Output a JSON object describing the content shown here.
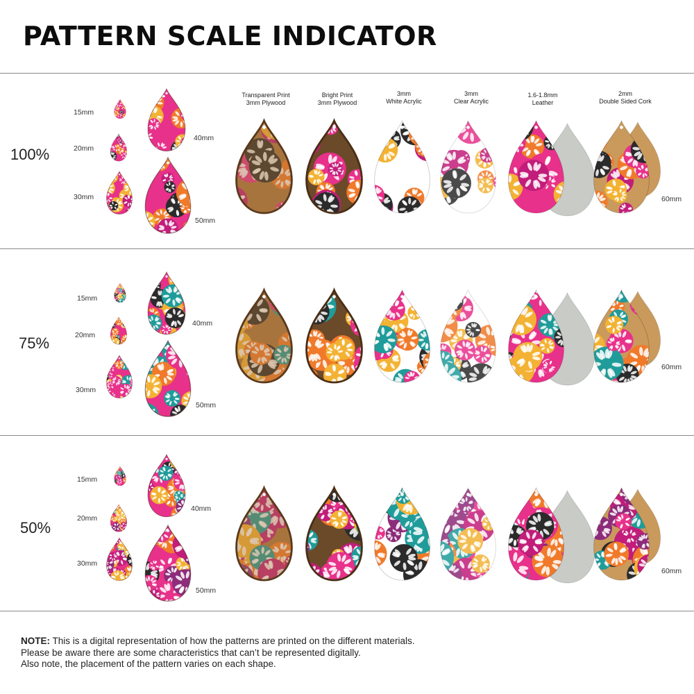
{
  "title": "PATTERN SCALE INDICATOR",
  "materials": [
    {
      "line1": "Transparent Print",
      "line2": "3mm Plywood",
      "kind": "plywood-transparent"
    },
    {
      "line1": "Bright Print",
      "line2": "3mm Plywood",
      "kind": "plywood-bright"
    },
    {
      "line1": "3mm",
      "line2": "White Acrylic",
      "kind": "white-acrylic"
    },
    {
      "line1": "3mm",
      "line2": "Clear Acrylic",
      "kind": "clear-acrylic"
    },
    {
      "line1": "1.6-1.8mm",
      "line2": "Leather",
      "kind": "leather"
    },
    {
      "line1": "2mm",
      "line2": "Double Sided Cork",
      "kind": "cork"
    }
  ],
  "sizes": {
    "s15": "15mm",
    "s20": "20mm",
    "s30": "30mm",
    "s40": "40mm",
    "s50": "50mm",
    "s60": "60mm"
  },
  "sections": [
    {
      "scale": "100%"
    },
    {
      "scale": "75%"
    },
    {
      "scale": "50%"
    }
  ],
  "note": {
    "bold": "NOTE:",
    "line1": " This is a digital representation of how the patterns are printed on the different materials.",
    "line2": "Please be aware there are some characteristics that can’t be represented digitally.",
    "line3": "Also note, the placement of the pattern varies on each shape."
  },
  "colors": {
    "pink": "#e8318a",
    "magenta": "#c21d7a",
    "orange": "#f07a2a",
    "yellow": "#f3b233",
    "black": "#2b2b2b",
    "teal": "#1f9c9a",
    "purple": "#8c2c7a",
    "wood": "#a8743e",
    "leather_back": "#c9cbc6",
    "cork_back": "#c99a5c"
  }
}
